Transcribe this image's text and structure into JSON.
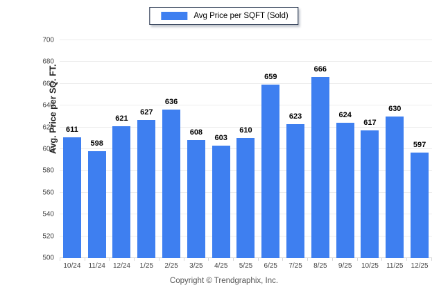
{
  "chart_data": {
    "type": "bar",
    "title": "",
    "legend": "Avg Price per SQFT (Sold)",
    "legend_position": "top-center",
    "xlabel": "",
    "ylabel": "Avg. Price per SQ. FT.",
    "ylim": [
      500,
      700
    ],
    "y_tick_step": 20,
    "y_ticks": [
      700,
      680,
      660,
      640,
      620,
      600,
      580,
      560,
      540,
      520,
      500
    ],
    "grid": true,
    "categories": [
      "10/24",
      "11/24",
      "12/24",
      "1/25",
      "2/25",
      "3/25",
      "4/25",
      "5/25",
      "6/25",
      "7/25",
      "8/25",
      "9/25",
      "10/25",
      "11/25",
      "12/25"
    ],
    "values": [
      611,
      598,
      621,
      627,
      636,
      608,
      603,
      610,
      659,
      623,
      666,
      624,
      617,
      630,
      597
    ]
  },
  "colors": {
    "bar": "#3E7FF0",
    "gridline": "#ECECEC",
    "axis_line": "#E0E0E0",
    "axis_text": "#444444",
    "value_label": "#000000",
    "legend_border": "#1A2A45"
  },
  "footer": {
    "copyright": "Copyright © Trendgraphix, Inc."
  }
}
